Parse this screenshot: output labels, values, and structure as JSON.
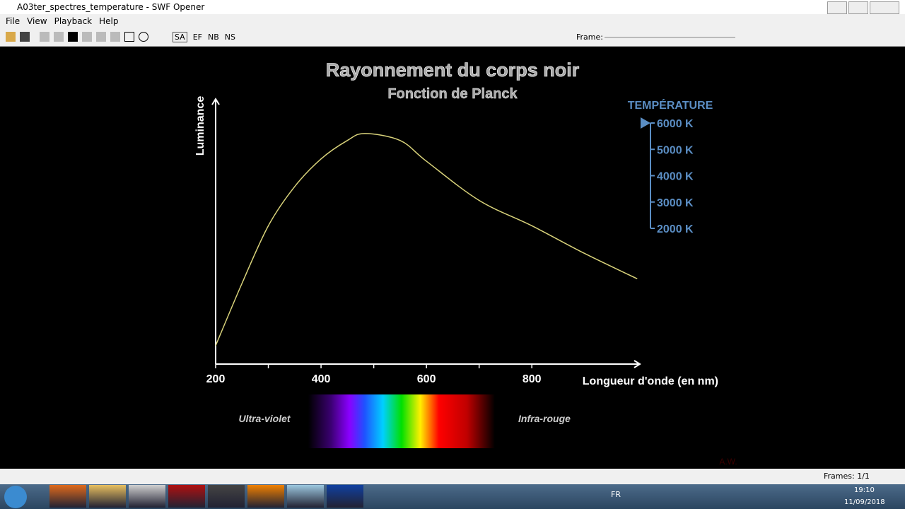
{
  "window": {
    "title": "A03ter_spectres_temperature - SWF Opener"
  },
  "menu": [
    "File",
    "View",
    "Playback",
    "Help"
  ],
  "toolbar": {
    "modes": [
      "SA",
      "EF",
      "NB",
      "NS"
    ],
    "frame_label": "Frame:"
  },
  "chart_data": {
    "type": "line",
    "title": "Rayonnement du corps noir",
    "subtitle": "Fonction de Planck",
    "y_label": "Luminance",
    "x_label": "Longueur d'onde (en nm)",
    "x": [
      200,
      250,
      300,
      350,
      400,
      450,
      483,
      550,
      600,
      700,
      800,
      900,
      1000
    ],
    "series": [
      {
        "name": "6000 K",
        "color": "#d8d27a",
        "values": [
          0.08,
          0.35,
          0.6,
          0.77,
          0.89,
          0.97,
          1.0,
          0.97,
          0.88,
          0.71,
          0.6,
          0.48,
          0.37
        ]
      }
    ],
    "xlim": [
      200,
      1005
    ],
    "ylim": [
      0,
      1.15
    ],
    "xticks": [
      200,
      400,
      600,
      800
    ],
    "x_minor_ticks": [
      300,
      500,
      700
    ],
    "uv_label": "Ultra-violet",
    "ir_label": "Infra-rouge",
    "credit": "A.W."
  },
  "temperature_control": {
    "title": "TEMPÉRATURE",
    "ticks": [
      "6000 K",
      "5000 K",
      "4000 K",
      "3000 K",
      "2000 K"
    ]
  },
  "status": {
    "frames": "Frames: 1/1"
  },
  "taskbar": {
    "language": "FR",
    "time": "19:10",
    "date": "11/09/2018"
  }
}
